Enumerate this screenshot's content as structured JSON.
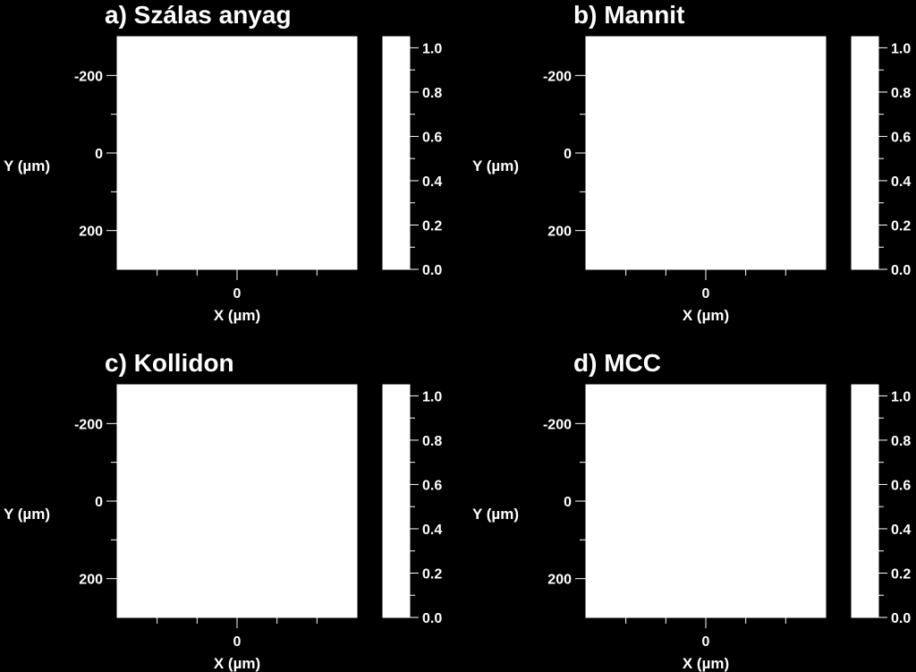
{
  "colors": {
    "background": "#000000",
    "foreground": "#ffffff",
    "plot_fill": "#ffffff",
    "colorbar_fill": "#ffffff"
  },
  "chart_data": [
    {
      "type": "heatmap",
      "title": "a) Szálas anyag",
      "xlabel": "X (µm)",
      "ylabel": "Y (µm)",
      "xlim": [
        -300,
        300
      ],
      "ylim": [
        -300,
        300
      ],
      "y_inverted": true,
      "xticks": [
        "0"
      ],
      "yticks": [
        "-200",
        "0",
        "200"
      ],
      "colorbar": {
        "range": [
          0.0,
          1.05
        ],
        "ticks": [
          "0.0",
          "0.2",
          "0.4",
          "0.6",
          "0.8",
          "1.0"
        ]
      },
      "values": []
    },
    {
      "type": "heatmap",
      "title": "b) Mannit",
      "xlabel": "X (µm)",
      "ylabel": "Y (µm)",
      "xlim": [
        -300,
        300
      ],
      "ylim": [
        -300,
        300
      ],
      "y_inverted": true,
      "xticks": [
        "0"
      ],
      "yticks": [
        "-200",
        "0",
        "200"
      ],
      "colorbar": {
        "range": [
          0.0,
          1.05
        ],
        "ticks": [
          "0.0",
          "0.2",
          "0.4",
          "0.6",
          "0.8",
          "1.0"
        ]
      },
      "values": []
    },
    {
      "type": "heatmap",
      "title": "c) Kollidon",
      "xlabel": "X (µm)",
      "ylabel": "Y (µm)",
      "xlim": [
        -300,
        300
      ],
      "ylim": [
        -300,
        300
      ],
      "y_inverted": true,
      "xticks": [
        "0"
      ],
      "yticks": [
        "-200",
        "0",
        "200"
      ],
      "colorbar": {
        "range": [
          0.0,
          1.05
        ],
        "ticks": [
          "0.0",
          "0.2",
          "0.4",
          "0.6",
          "0.8",
          "1.0"
        ]
      },
      "values": []
    },
    {
      "type": "heatmap",
      "title": "d) MCC",
      "xlabel": "X (µm)",
      "ylabel": "Y (µm)",
      "xlim": [
        -300,
        300
      ],
      "ylim": [
        -300,
        300
      ],
      "y_inverted": true,
      "xticks": [
        "0"
      ],
      "yticks": [
        "-200",
        "0",
        "200"
      ],
      "colorbar": {
        "range": [
          0.0,
          1.05
        ],
        "ticks": [
          "0.0",
          "0.2",
          "0.4",
          "0.6",
          "0.8",
          "1.0"
        ]
      },
      "values": []
    }
  ]
}
